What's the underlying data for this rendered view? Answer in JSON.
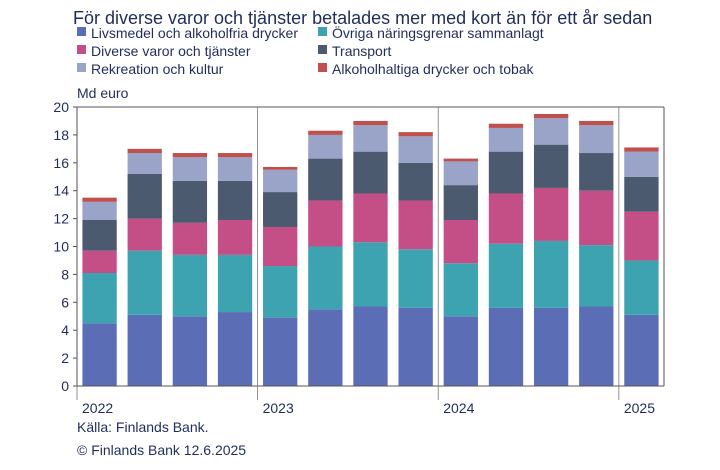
{
  "chart_data": {
    "type": "bar",
    "stacked": true,
    "title": "För diverse varor och tjänster betalades mer med kort än för ett år sedan",
    "ylabel": "Md euro",
    "ylim": [
      0,
      20
    ],
    "yticks": [
      0,
      2,
      4,
      6,
      8,
      10,
      12,
      14,
      16,
      18,
      20
    ],
    "year_labels": [
      "2022",
      "2023",
      "2024",
      "2025"
    ],
    "year_groups": [
      [
        0,
        3
      ],
      [
        4,
        7
      ],
      [
        8,
        11
      ],
      [
        12,
        12
      ]
    ],
    "grid": false,
    "legend_position": "top",
    "categories": [
      "2022 Q1",
      "2022 Q2",
      "2022 Q3",
      "2022 Q4",
      "2023 Q1",
      "2023 Q2",
      "2023 Q3",
      "2023 Q4",
      "2024 Q1",
      "2024 Q2",
      "2024 Q3",
      "2024 Q4",
      "2025 Q1"
    ],
    "series": [
      {
        "name": "Livsmedel och alkoholfria drycker",
        "color": "#5b6eb5",
        "values": [
          4.5,
          5.1,
          5.0,
          5.3,
          4.9,
          5.5,
          5.7,
          5.6,
          5.0,
          5.6,
          5.6,
          5.7,
          5.1
        ]
      },
      {
        "name": "Övriga näringsgrenar sammanlagt",
        "color": "#3ea3b1",
        "values": [
          3.6,
          4.6,
          4.4,
          4.1,
          3.7,
          4.5,
          4.6,
          4.2,
          3.8,
          4.6,
          4.8,
          4.4,
          3.9
        ]
      },
      {
        "name": "Diverse varor och tjänster",
        "color": "#c34f86",
        "values": [
          1.6,
          2.3,
          2.3,
          2.5,
          2.8,
          3.3,
          3.5,
          3.5,
          3.1,
          3.6,
          3.8,
          3.9,
          3.5
        ]
      },
      {
        "name": "Transport",
        "color": "#4b5a6e",
        "values": [
          2.2,
          3.2,
          3.0,
          2.8,
          2.5,
          3.0,
          3.0,
          2.7,
          2.5,
          3.0,
          3.1,
          2.7,
          2.5
        ]
      },
      {
        "name": "Rekreation och kultur",
        "color": "#9aa3c8",
        "values": [
          1.3,
          1.5,
          1.7,
          1.7,
          1.6,
          1.7,
          1.9,
          1.9,
          1.7,
          1.7,
          1.9,
          2.0,
          1.8
        ]
      },
      {
        "name": "Alkoholhaltiga drycker och tobak",
        "color": "#c0504d",
        "values": [
          0.3,
          0.3,
          0.3,
          0.3,
          0.2,
          0.3,
          0.3,
          0.3,
          0.2,
          0.3,
          0.3,
          0.3,
          0.3
        ]
      }
    ]
  },
  "source": {
    "line1": "Källa: Finlands Bank.",
    "line2": "© Finlands Bank 12.6.2025"
  }
}
